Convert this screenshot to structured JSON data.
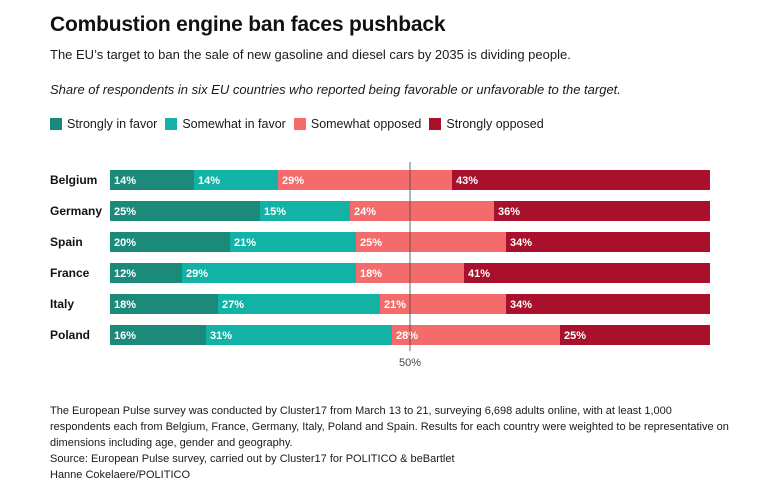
{
  "header": {
    "title": "Combustion engine ban faces pushback",
    "subtitle": "The EU’s target to ban the sale of new gasoline and diesel cars by 2035 is dividing people.",
    "note": "Share of respondents in six EU countries who reported being favorable or unfavorable to the target."
  },
  "legend": [
    {
      "label": "Strongly in favor",
      "color": "#1b8a7a"
    },
    {
      "label": "Somewhat in favor",
      "color": "#12b3a6"
    },
    {
      "label": "Somewhat opposed",
      "color": "#f36b6b"
    },
    {
      "label": "Strongly opposed",
      "color": "#a8102c"
    }
  ],
  "chart_data": {
    "type": "bar",
    "orientation": "horizontal",
    "stacked": true,
    "categories": [
      "Belgium",
      "Germany",
      "Spain",
      "France",
      "Italy",
      "Poland"
    ],
    "series": [
      {
        "name": "Strongly in favor",
        "values": [
          14,
          25,
          20,
          12,
          18,
          16
        ]
      },
      {
        "name": "Somewhat in favor",
        "values": [
          14,
          15,
          21,
          29,
          27,
          31
        ]
      },
      {
        "name": "Somewhat opposed",
        "values": [
          29,
          24,
          25,
          18,
          21,
          28
        ]
      },
      {
        "name": "Strongly opposed",
        "values": [
          43,
          36,
          34,
          41,
          34,
          25
        ]
      }
    ],
    "value_suffix": "%",
    "reference_line": {
      "value": 50,
      "label": "50%"
    },
    "xlim": [
      0,
      100
    ],
    "title": "Combustion engine ban faces pushback"
  },
  "footer": {
    "methodology": "The European Pulse survey was conducted by Cluster17 from March 13 to 21, surveying 6,698 adults online, with at least 1,000 respondents each from Belgium, France, Germany, Italy, Poland and Spain. Results for each country were weighted to be representative on dimensions including age, gender and geography.",
    "source": "Source: European Pulse survey, carried out by Cluster17 for POLITICO & beBartlet",
    "credit": "Hanne Cokelaere/POLITICO"
  }
}
